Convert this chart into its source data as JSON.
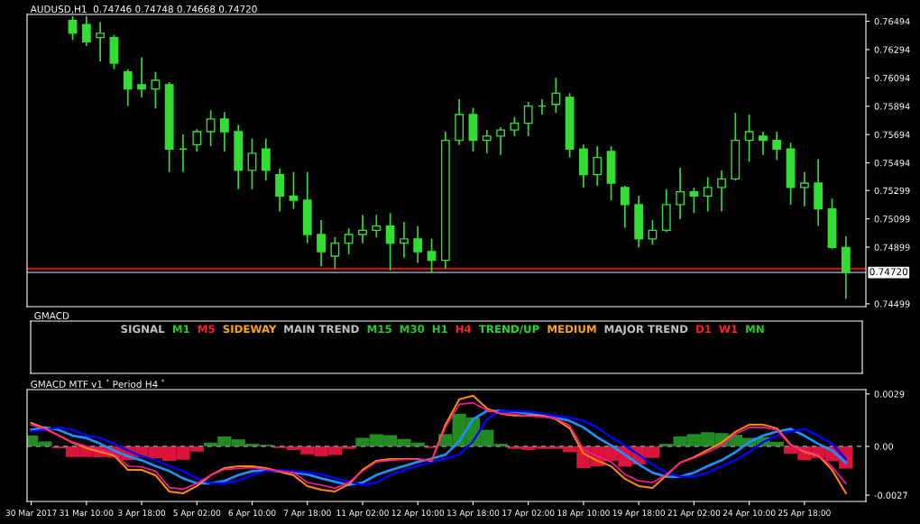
{
  "chart_data": [
    {
      "type": "candlestick",
      "title": "AUDUSD,H1  0.74746 0.74748 0.74668 0.74720",
      "color": "#33dd33",
      "tick_labels": "y",
      "ohlc": [
        null,
        null,
        null,
        [
          0.765,
          0.7653,
          0.76361,
          0.76409
        ],
        [
          0.7647,
          0.7653,
          0.76319,
          0.76349
        ],
        [
          0.76379,
          0.76488,
          0.7621,
          0.76409
        ],
        [
          0.76379,
          0.76397,
          0.76155,
          0.76198
        ],
        [
          0.76137,
          0.76155,
          0.75895,
          0.76016
        ],
        [
          0.76046,
          0.7624,
          0.75956,
          0.76016
        ],
        [
          0.76016,
          0.76137,
          0.75877,
          0.76077
        ],
        [
          0.76046,
          0.76064,
          0.75429,
          0.75592
        ],
        [
          0.75592,
          0.75695,
          0.75429,
          0.75592
        ],
        [
          0.75623,
          0.75732,
          0.75574,
          0.75714
        ],
        [
          0.75714,
          0.75865,
          0.75611,
          0.75804
        ],
        [
          0.75804,
          0.75853,
          0.75574,
          0.75714
        ],
        [
          0.75714,
          0.75762,
          0.75308,
          0.75441
        ],
        [
          0.75441,
          0.75665,
          0.75308,
          0.75562
        ],
        [
          0.75592,
          0.75665,
          0.75369,
          0.75441
        ],
        [
          0.75411,
          0.75453,
          0.75151,
          0.7526
        ],
        [
          0.7526,
          0.75429,
          0.75169,
          0.7523
        ],
        [
          0.7523,
          0.75429,
          0.74927,
          0.74988
        ],
        [
          0.74988,
          0.7509,
          0.74764,
          0.74867
        ],
        [
          0.74836,
          0.7497,
          0.74746,
          0.74927
        ],
        [
          0.74927,
          0.7503,
          0.74849,
          0.74988
        ],
        [
          0.74988,
          0.75127,
          0.74927,
          0.75018
        ],
        [
          0.75018,
          0.75127,
          0.7497,
          0.75048
        ],
        [
          0.75048,
          0.75139,
          0.74734,
          0.74927
        ],
        [
          0.74927,
          0.75078,
          0.74824,
          0.74957
        ],
        [
          0.74957,
          0.75048,
          0.74788,
          0.74867
        ],
        [
          0.74867,
          0.74957,
          0.74716,
          0.74806
        ],
        [
          0.74806,
          0.75714,
          0.74746,
          0.75653
        ],
        [
          0.75653,
          0.75943,
          0.7562,
          0.75835
        ],
        [
          0.75835,
          0.75883,
          0.75574,
          0.75653
        ],
        [
          0.75653,
          0.75726,
          0.75562,
          0.75683
        ],
        [
          0.75683,
          0.75744,
          0.7555,
          0.75726
        ],
        [
          0.75726,
          0.75816,
          0.75683,
          0.75774
        ],
        [
          0.75774,
          0.75925,
          0.75683,
          0.75895
        ],
        [
          0.75895,
          0.75943,
          0.75835,
          0.75895
        ],
        [
          0.75907,
          0.76095,
          0.75847,
          0.75986
        ],
        [
          0.75956,
          0.75986,
          0.75532,
          0.75592
        ],
        [
          0.75592,
          0.75623,
          0.7532,
          0.75411
        ],
        [
          0.75411,
          0.75611,
          0.75332,
          0.75532
        ],
        [
          0.75574,
          0.75611,
          0.7523,
          0.75351
        ],
        [
          0.7532,
          0.75332,
          0.75036,
          0.75199
        ],
        [
          0.75199,
          0.7526,
          0.74897,
          0.74957
        ],
        [
          0.74957,
          0.7509,
          0.74915,
          0.75018
        ],
        [
          0.75018,
          0.75308,
          0.75006,
          0.75199
        ],
        [
          0.75199,
          0.75459,
          0.75097,
          0.7529
        ],
        [
          0.7529,
          0.7532,
          0.75139,
          0.7526
        ],
        [
          0.7526,
          0.75393,
          0.75151,
          0.7532
        ],
        [
          0.7532,
          0.75441,
          0.75151,
          0.75381
        ],
        [
          0.75381,
          0.75847,
          0.75369,
          0.75653
        ],
        [
          0.75653,
          0.75835,
          0.75502,
          0.75714
        ],
        [
          0.75683,
          0.75714,
          0.7555,
          0.75653
        ],
        [
          0.75653,
          0.75714,
          0.75514,
          0.75592
        ],
        [
          0.75592,
          0.75635,
          0.75199,
          0.7532
        ],
        [
          0.7532,
          0.75429,
          0.75187,
          0.75351
        ],
        [
          0.75351,
          0.7552,
          0.75048,
          0.75169
        ],
        [
          0.75169,
          0.75242,
          0.74885,
          0.74897
        ],
        [
          0.74897,
          0.74976,
          0.74534,
          0.7472
        ]
      ],
      "ylim": [
        0.74479,
        0.76542
      ],
      "yticks": [
        0.76494,
        0.76294,
        0.76094,
        0.75894,
        0.75694,
        0.75494,
        0.75299,
        0.75099,
        0.74899,
        0.74499
      ],
      "ref_lines": [
        {
          "axis": "y",
          "value": 0.74747,
          "color": "#ff0000"
        },
        {
          "axis": "y",
          "value": 0.7472,
          "color": "#778899",
          "label": "0.74720"
        }
      ]
    },
    {
      "type": "other",
      "title": "GMACD",
      "annotations": [
        "SIGNAL",
        "M1",
        "M5",
        "SIDEWAY",
        "MAIN TREND",
        "M15",
        "M30",
        "H1",
        "H4",
        "TREND/UP",
        "MEDIUM",
        "MAJOR TREND",
        "D1",
        "W1",
        "MN"
      ],
      "colors": [
        "#c0c0c0",
        "#22cc22",
        "#ff2020",
        "#ffa500",
        "#c0c0c0",
        "#22cc22",
        "#22cc22",
        "#22cc22",
        "#ff2020",
        "#22dd22",
        "#ffa500",
        "#c0c0c0",
        "#ff2020",
        "#ff2020",
        "#22cc22"
      ]
    },
    {
      "type": "bar",
      "title": "GMACD MTF v1 $^{*}$ Period H4 $^{*}$",
      "categories": [
        "30 Mar 2017",
        null,
        null,
        null,
        "31 Mar 10:00",
        null,
        null,
        null,
        "3 Apr 18:00",
        null,
        null,
        null,
        "5 Apr 02:00",
        null,
        null,
        null,
        "6 Apr 10:00",
        null,
        null,
        null,
        "7 Apr 18:00",
        null,
        null,
        null,
        "11 Apr 02:00",
        null,
        null,
        null,
        "12 Apr 10:00",
        null,
        null,
        null,
        "13 Apr 18:00",
        null,
        null,
        null,
        "17 Apr 02:00",
        null,
        null,
        null,
        "18 Apr 10:00",
        null,
        null,
        null,
        "19 Apr 18:00",
        null,
        null,
        null,
        "21 Apr 02:00",
        null,
        null,
        null,
        "24 Apr 10:00",
        null,
        null,
        null,
        "25 Apr 18:00",
        null,
        null,
        null
      ],
      "series": [
        {
          "type": "bar",
          "values": [
            0.0006,
            0.00027,
            -0.0001,
            -0.00059,
            -0.00059,
            -0.0006,
            -0.00063,
            -0.00077,
            -0.0006,
            -0.00065,
            -0.0008,
            -0.00074,
            -0.00029,
            0.00021,
            0.00055,
            0.00039,
            0.00014,
            9e-05,
            -9e-05,
            -0.0002,
            -0.00044,
            -0.00055,
            -0.00048,
            -0.00014,
            0.00047,
            0.00067,
            0.00062,
            0.00041,
            0.00021,
            -9e-05,
            0.00068,
            0.0018,
            0.0016,
            0.00091,
            0.00014,
            -0.00014,
            -0.0002,
            -0.00014,
            -0.00014,
            -0.00032,
            -0.0012,
            -0.0011,
            -0.0008,
            -0.00113,
            -0.001,
            -0.00064,
            0.00014,
            0.00055,
            0.00068,
            0.00078,
            0.00073,
            0.00064,
            0.00047,
            0.0005,
            0.00025,
            -0.0004,
            -0.00077,
            -0.00065,
            -0.00082,
            -0.00123
          ],
          "colors": [
            "#228b22",
            "#228b22",
            "#dc143c",
            "#dc143c",
            "#dc143c",
            "#dc143c",
            "#dc143c",
            "#dc143c",
            "#dc143c",
            "#dc143c",
            "#dc143c",
            "#dc143c",
            "#dc143c",
            "#228b22",
            "#228b22",
            "#228b22",
            "#228b22",
            "#228b22",
            "#dc143c",
            "#dc143c",
            "#dc143c",
            "#dc143c",
            "#dc143c",
            "#dc143c",
            "#228b22",
            "#228b22",
            "#228b22",
            "#228b22",
            "#228b22",
            "#dc143c",
            "#228b22",
            "#228b22",
            "#228b22",
            "#228b22",
            "#228b22",
            "#dc143c",
            "#dc143c",
            "#dc143c",
            "#dc143c",
            "#dc143c",
            "#dc143c",
            "#dc143c",
            "#dc143c",
            "#dc143c",
            "#dc143c",
            "#dc143c",
            "#228b22",
            "#228b22",
            "#228b22",
            "#228b22",
            "#228b22",
            "#228b22",
            "#228b22",
            "#228b22",
            "#228b22",
            "#dc143c",
            "#dc143c",
            "#dc143c",
            "#dc143c",
            "#dc143c"
          ]
        },
        {
          "type": "line",
          "color": "#1e90ff",
          "values": [
            0.00091,
            0.00105,
            0.00091,
            0.00059,
            0.00046,
            0.00014,
            -0.00023,
            -0.00055,
            -0.00077,
            -0.00109,
            -0.00137,
            -0.00177,
            -0.00205,
            -0.00205,
            -0.00191,
            -0.00159,
            -0.00137,
            -0.00132,
            -0.00137,
            -0.00146,
            -0.00155,
            -0.00177,
            -0.00196,
            -0.00214,
            -0.002,
            -0.00159,
            -0.00132,
            -0.00109,
            -0.00086,
            -0.00068,
            -0.00046,
            0.00027,
            0.0015,
            0.00196,
            0.00196,
            0.00191,
            0.00182,
            0.00168,
            0.00159,
            0.00141,
            0.00105,
            0.0005,
            5e-05,
            -0.00046,
            -0.001,
            -0.00146,
            -0.00168,
            -0.00168,
            -0.00146,
            -0.00109,
            -0.00077,
            -0.00032,
            0.00023,
            0.00059,
            0.00082,
            0.00096,
            0.00059,
            0.00014,
            -0.00023,
            -0.00091
          ]
        },
        {
          "type": "line",
          "color": "#0000ff",
          "values": [
            0.00082,
            0.00091,
            0.00105,
            0.00091,
            0.00059,
            0.00046,
            0.00014,
            -0.00023,
            -0.00055,
            -0.00077,
            -0.00109,
            -0.00137,
            -0.00177,
            -0.00205,
            -0.00205,
            -0.00191,
            -0.00159,
            -0.00137,
            -0.00132,
            -0.00137,
            -0.00146,
            -0.00155,
            -0.00177,
            -0.00196,
            -0.00214,
            -0.002,
            -0.00159,
            -0.00132,
            -0.00109,
            -0.00086,
            -0.00068,
            -0.00046,
            0.00027,
            0.0015,
            0.00196,
            0.00196,
            0.00191,
            0.00182,
            0.00168,
            0.00159,
            0.00141,
            0.00105,
            0.0005,
            5e-05,
            -0.00046,
            -0.001,
            -0.00146,
            -0.00168,
            -0.00168,
            -0.00146,
            -0.00109,
            -0.00077,
            -0.00032,
            0.00023,
            0.00059,
            0.00082,
            0.00096,
            0.00059,
            0.00014,
            -0.0007
          ]
        },
        {
          "type": "line",
          "color": "#ff8c00",
          "values": [
            0.0013,
            0.001,
            0.0006,
            0.0002,
            -0.0001,
            -0.0003,
            -0.0005,
            -0.0013,
            -0.0013,
            -0.0016,
            -0.0025,
            -0.0026,
            -0.0022,
            -0.0016,
            -0.0012,
            -0.0011,
            -0.0011,
            -0.0012,
            -0.0014,
            -0.0016,
            -0.0022,
            -0.0024,
            -0.0025,
            -0.0021,
            -0.0013,
            -0.0008,
            -0.0007,
            -0.0007,
            -0.0007,
            -0.0008,
            0.0012,
            0.0026,
            0.0028,
            0.0021,
            0.0018,
            0.0017,
            0.0017,
            0.0017,
            0.0015,
            0.001,
            -0.0004,
            -0.0008,
            -0.0011,
            -0.0018,
            -0.0022,
            -0.0023,
            -0.0016,
            -0.0009,
            -0.0006,
            -0.0002,
            0.0002,
            0.0008,
            0.0012,
            0.0012,
            0.001,
            0.0001,
            -0.0003,
            -0.0005,
            -0.0013,
            -0.0026
          ]
        },
        {
          "type": "line",
          "color": "#ff1493",
          "values": [
            0.00118,
            0.00096,
            0.00059,
            0.00023,
            0,
            -0.00018,
            -0.00041,
            -0.00109,
            -0.00114,
            -0.00137,
            -0.00228,
            -0.00237,
            -0.00205,
            -0.00159,
            -0.00127,
            -0.00123,
            -0.00118,
            -0.00127,
            -0.00137,
            -0.00146,
            -0.002,
            -0.00214,
            -0.00232,
            -0.002,
            -0.00137,
            -0.00086,
            -0.00077,
            -0.00073,
            -0.00073,
            -0.00077,
            0.00105,
            0.00232,
            0.00241,
            0.002,
            0.00182,
            0.00177,
            0.00168,
            0.00164,
            0.00155,
            0.00114,
            -0.00018,
            -0.00055,
            -0.00086,
            -0.00155,
            -0.00191,
            -0.002,
            -0.00155,
            -0.00091,
            -0.00064,
            -0.00032,
            5e-05,
            0.00068,
            0.00105,
            0.00105,
            0.00091,
            5e-05,
            -0.00023,
            -0.00046,
            -0.00114,
            -0.00205
          ]
        }
      ],
      "ylim": [
        -0.00305,
        0.00314
      ],
      "yticks": [
        0.0029,
        {
          "value": 0,
          "label": "0.00"
        },
        -0.0027
      ],
      "ref_lines": [
        {
          "axis": "y",
          "value": 0,
          "color": "#808080",
          "line_style": "dashed"
        }
      ]
    }
  ]
}
